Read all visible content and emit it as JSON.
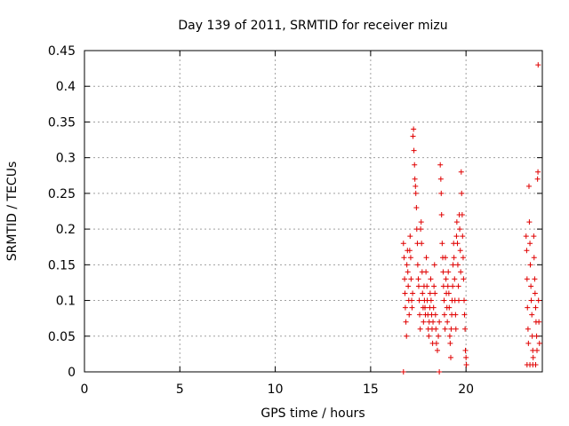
{
  "chart_data": {
    "type": "scatter",
    "title": "Day 139 of 2011, SRMTID for receiver mizu",
    "xlabel": "GPS time / hours",
    "ylabel": "SRMTID / TECUs",
    "xlim": [
      0,
      24
    ],
    "ylim": [
      0,
      0.45
    ],
    "grid": true,
    "marker": "+",
    "color": "#e00000",
    "xticks": [
      0,
      5,
      10,
      15,
      20
    ],
    "xtick_labels": [
      "0",
      "5",
      "10",
      "15",
      "20"
    ],
    "yticks": [
      0,
      0.05,
      0.1,
      0.15,
      0.2,
      0.25,
      0.3,
      0.35,
      0.4,
      0.45
    ],
    "ytick_labels": [
      "0",
      "0.05",
      "0.1",
      "0.15",
      "0.2",
      "0.25",
      "0.3",
      "0.35",
      "0.4",
      "0.45"
    ],
    "series": [
      {
        "name": "SRMTID",
        "points": [
          [
            16.72,
            0.18
          ],
          [
            16.75,
            0.16
          ],
          [
            16.78,
            0.13
          ],
          [
            16.8,
            0.11
          ],
          [
            16.82,
            0.09
          ],
          [
            16.85,
            0.07
          ],
          [
            16.88,
            0.05
          ],
          [
            16.9,
            0.15
          ],
          [
            16.93,
            0.17
          ],
          [
            16.95,
            0.14
          ],
          [
            16.97,
            0.12
          ],
          [
            17.0,
            0.1
          ],
          [
            17.02,
            0.08
          ],
          [
            17.05,
            0.17
          ],
          [
            17.07,
            0.19
          ],
          [
            17.1,
            0.16
          ],
          [
            17.12,
            0.13
          ],
          [
            17.15,
            0.1
          ],
          [
            17.17,
            0.09
          ],
          [
            17.2,
            0.11
          ],
          [
            17.22,
            0.33
          ],
          [
            17.25,
            0.34
          ],
          [
            17.27,
            0.31
          ],
          [
            17.3,
            0.29
          ],
          [
            17.32,
            0.27
          ],
          [
            17.35,
            0.26
          ],
          [
            17.37,
            0.25
          ],
          [
            17.4,
            0.23
          ],
          [
            17.42,
            0.2
          ],
          [
            17.45,
            0.18
          ],
          [
            17.47,
            0.15
          ],
          [
            17.5,
            0.13
          ],
          [
            17.52,
            0.12
          ],
          [
            17.55,
            0.1
          ],
          [
            17.57,
            0.08
          ],
          [
            17.6,
            0.06
          ],
          [
            17.62,
            0.2
          ],
          [
            17.65,
            0.21
          ],
          [
            17.67,
            0.18
          ],
          [
            17.7,
            0.14
          ],
          [
            17.72,
            0.11
          ],
          [
            17.75,
            0.09
          ],
          [
            17.77,
            0.07
          ],
          [
            17.8,
            0.12
          ],
          [
            17.82,
            0.1
          ],
          [
            17.85,
            0.09
          ],
          [
            17.87,
            0.08
          ],
          [
            17.9,
            0.14
          ],
          [
            17.92,
            0.16
          ],
          [
            17.95,
            0.12
          ],
          [
            17.97,
            0.1
          ],
          [
            18.0,
            0.08
          ],
          [
            18.02,
            0.06
          ],
          [
            18.05,
            0.05
          ],
          [
            18.07,
            0.07
          ],
          [
            18.1,
            0.09
          ],
          [
            18.12,
            0.11
          ],
          [
            18.15,
            0.13
          ],
          [
            18.17,
            0.1
          ],
          [
            18.2,
            0.08
          ],
          [
            18.22,
            0.06
          ],
          [
            18.25,
            0.04
          ],
          [
            18.27,
            0.07
          ],
          [
            18.3,
            0.09
          ],
          [
            18.32,
            0.12
          ],
          [
            18.35,
            0.15
          ],
          [
            18.37,
            0.11
          ],
          [
            18.4,
            0.08
          ],
          [
            18.42,
            0.06
          ],
          [
            18.45,
            0.04
          ],
          [
            18.5,
            0.03
          ],
          [
            18.55,
            0.05
          ],
          [
            18.6,
            0.07
          ],
          [
            18.65,
            0.29
          ],
          [
            18.68,
            0.27
          ],
          [
            18.7,
            0.25
          ],
          [
            18.72,
            0.22
          ],
          [
            18.75,
            0.18
          ],
          [
            18.78,
            0.16
          ],
          [
            18.8,
            0.14
          ],
          [
            18.82,
            0.12
          ],
          [
            18.85,
            0.1
          ],
          [
            18.87,
            0.08
          ],
          [
            18.9,
            0.06
          ],
          [
            18.92,
            0.16
          ],
          [
            18.95,
            0.13
          ],
          [
            18.97,
            0.11
          ],
          [
            19.0,
            0.09
          ],
          [
            19.02,
            0.07
          ],
          [
            19.05,
            0.12
          ],
          [
            19.07,
            0.14
          ],
          [
            19.1,
            0.11
          ],
          [
            19.12,
            0.09
          ],
          [
            19.15,
            0.05
          ],
          [
            19.17,
            0.04
          ],
          [
            19.2,
            0.02
          ],
          [
            19.22,
            0.06
          ],
          [
            19.25,
            0.08
          ],
          [
            19.27,
            0.1
          ],
          [
            19.3,
            0.12
          ],
          [
            19.32,
            0.15
          ],
          [
            19.35,
            0.18
          ],
          [
            19.37,
            0.16
          ],
          [
            19.4,
            0.13
          ],
          [
            19.42,
            0.1
          ],
          [
            19.45,
            0.08
          ],
          [
            19.47,
            0.06
          ],
          [
            19.5,
            0.19
          ],
          [
            19.52,
            0.21
          ],
          [
            19.55,
            0.18
          ],
          [
            19.57,
            0.15
          ],
          [
            19.6,
            0.12
          ],
          [
            19.62,
            0.1
          ],
          [
            19.65,
            0.22
          ],
          [
            19.67,
            0.2
          ],
          [
            19.7,
            0.17
          ],
          [
            19.72,
            0.14
          ],
          [
            19.75,
            0.28
          ],
          [
            19.77,
            0.25
          ],
          [
            19.8,
            0.22
          ],
          [
            19.82,
            0.19
          ],
          [
            19.85,
            0.16
          ],
          [
            19.87,
            0.13
          ],
          [
            19.9,
            0.1
          ],
          [
            19.92,
            0.08
          ],
          [
            19.95,
            0.06
          ],
          [
            19.97,
            0.03
          ],
          [
            20.0,
            0.02
          ],
          [
            20.02,
            0.01
          ],
          [
            23.15,
            0.19
          ],
          [
            23.18,
            0.17
          ],
          [
            23.2,
            0.13
          ],
          [
            23.22,
            0.09
          ],
          [
            23.25,
            0.06
          ],
          [
            23.27,
            0.04
          ],
          [
            23.3,
            0.26
          ],
          [
            23.32,
            0.21
          ],
          [
            23.35,
            0.18
          ],
          [
            23.37,
            0.15
          ],
          [
            23.4,
            0.12
          ],
          [
            23.42,
            0.1
          ],
          [
            23.45,
            0.08
          ],
          [
            23.47,
            0.05
          ],
          [
            23.5,
            0.03
          ],
          [
            23.52,
            0.02
          ],
          [
            23.55,
            0.19
          ],
          [
            23.57,
            0.16
          ],
          [
            23.6,
            0.13
          ],
          [
            23.62,
            0.11
          ],
          [
            23.65,
            0.09
          ],
          [
            23.67,
            0.07
          ],
          [
            23.7,
            0.05
          ],
          [
            23.72,
            0.03
          ],
          [
            23.75,
            0.27
          ],
          [
            23.77,
            0.28
          ],
          [
            23.78,
            0.43
          ],
          [
            23.8,
            0.1
          ],
          [
            23.82,
            0.07
          ],
          [
            23.85,
            0.04
          ],
          [
            16.72,
            0.0
          ],
          [
            18.6,
            0.0
          ],
          [
            23.2,
            0.01
          ],
          [
            23.35,
            0.01
          ],
          [
            23.5,
            0.01
          ],
          [
            23.65,
            0.01
          ]
        ]
      }
    ]
  }
}
